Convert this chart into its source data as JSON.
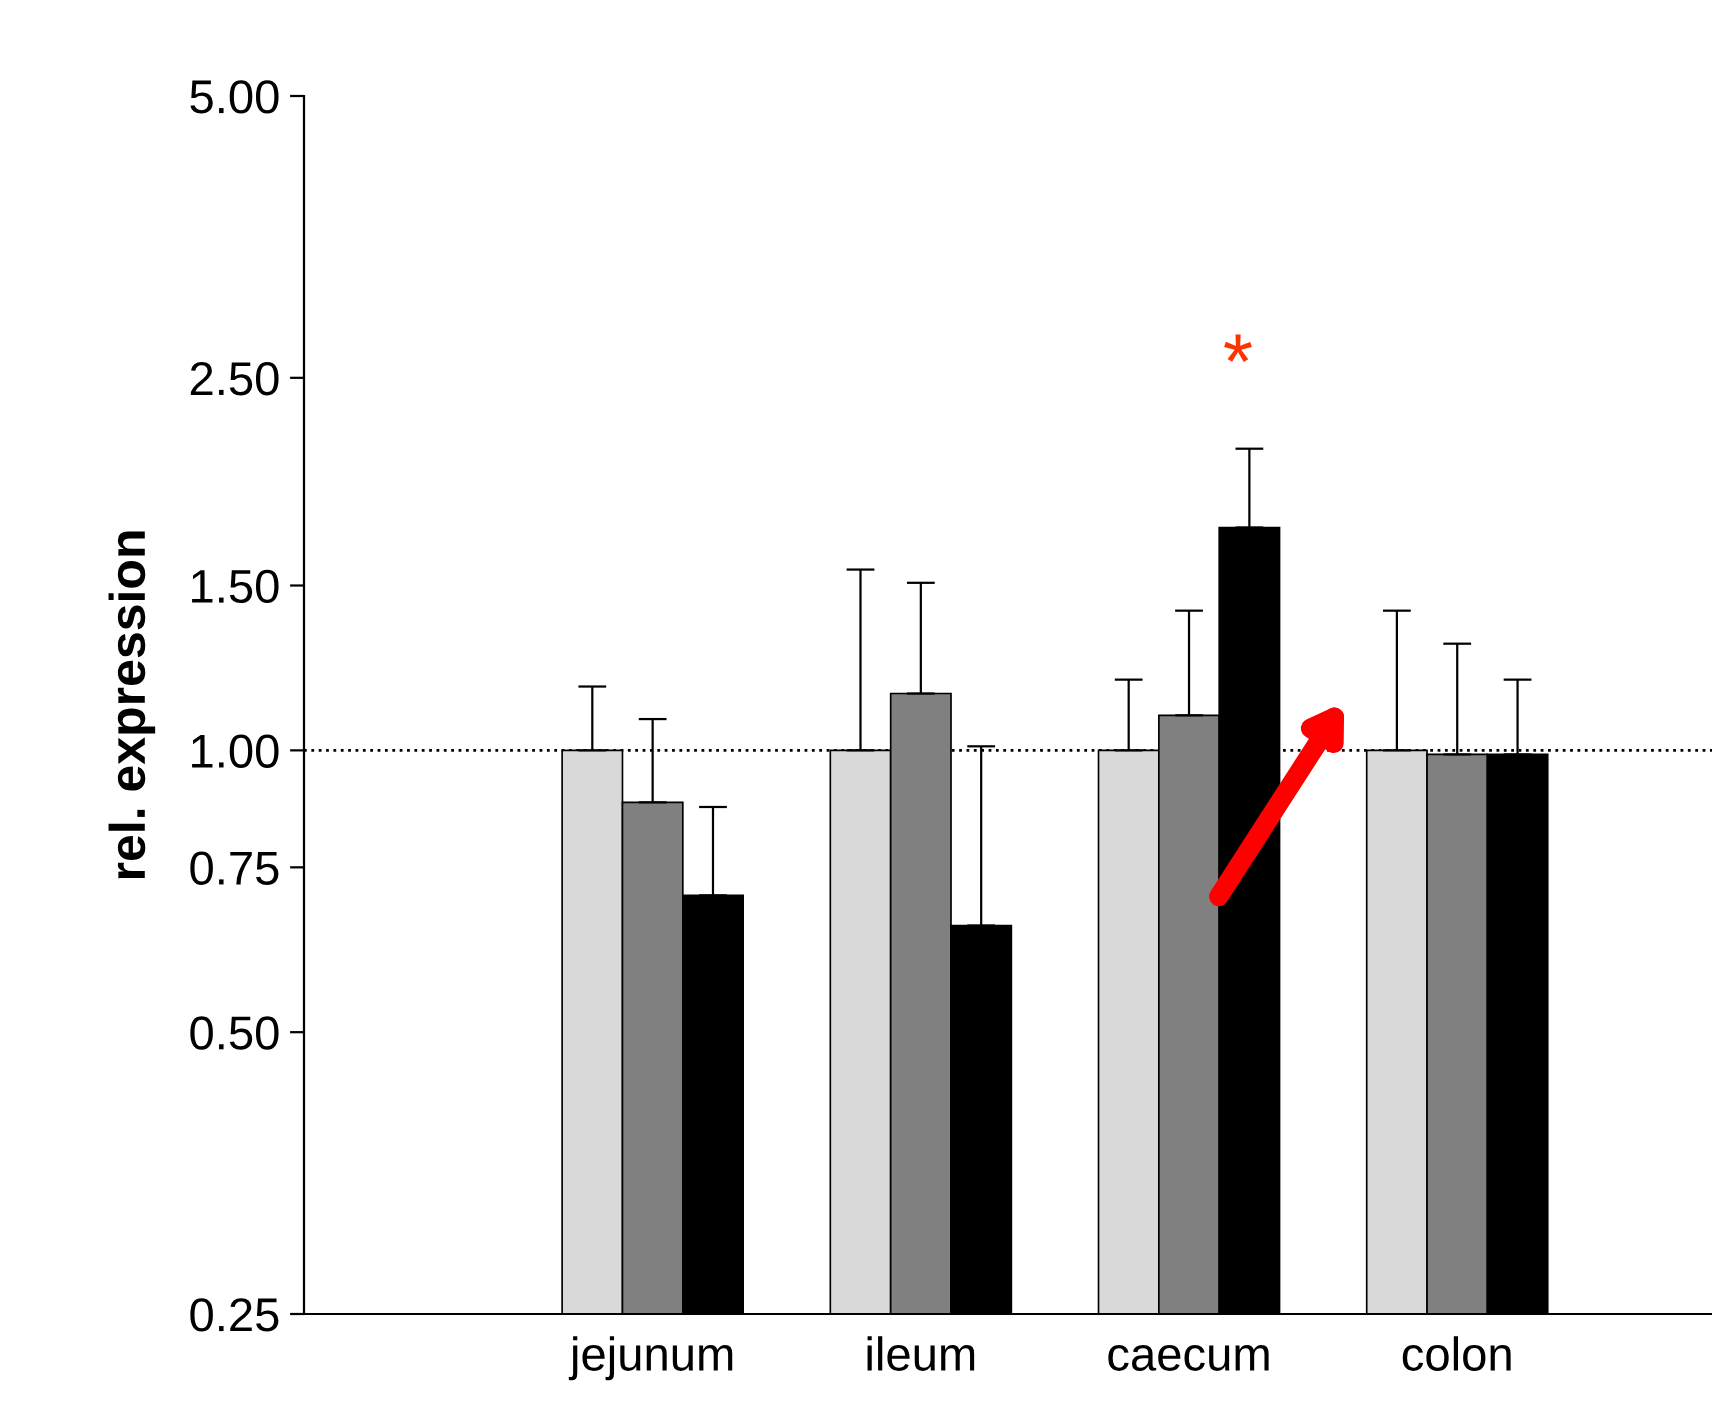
{
  "chart_data": {
    "type": "bar",
    "ylabel": "rel. expression",
    "categories": [
      "jejunum",
      "ileum",
      "caecum",
      "colon"
    ],
    "series": [
      {
        "color": "#d9d9d9",
        "values": [
          1.0,
          1.0,
          1.0,
          1.0
        ],
        "errors": [
          [
            1.0,
            1.17
          ],
          [
            1.0,
            1.56
          ],
          [
            1.0,
            1.19
          ],
          [
            1.0,
            1.41
          ]
        ]
      },
      {
        "color": "#808080",
        "values": [
          0.88,
          1.15,
          1.09,
          0.99
        ],
        "errors": [
          [
            0.88,
            1.08
          ],
          [
            1.15,
            1.51
          ],
          [
            1.09,
            1.41
          ],
          [
            0.99,
            1.3
          ]
        ]
      },
      {
        "color": "#000000",
        "values": [
          0.7,
          0.65,
          1.73,
          0.99
        ],
        "errors": [
          [
            0.7,
            0.87
          ],
          [
            0.65,
            1.01
          ],
          [
            1.73,
            2.1
          ],
          [
            0.99,
            1.19
          ]
        ]
      }
    ],
    "log": "y",
    "ylim": [
      0.25,
      5
    ],
    "yticks": [
      {
        "value": 0.25,
        "label": "0.25"
      },
      {
        "value": 0.5,
        "label": "0.50"
      },
      {
        "value": 0.75,
        "label": "0.75"
      },
      {
        "value": 1,
        "label": "1.00"
      },
      {
        "value": 1.5,
        "label": "1.50"
      },
      {
        "value": 2.5,
        "label": "2.50"
      },
      {
        "value": 5,
        "label": "5.00"
      }
    ],
    "ref_lines": [
      {
        "axis": "y",
        "value": 1,
        "color": "#000000",
        "line_style": "dotted"
      }
    ],
    "annotations": [
      "*"
    ],
    "grid": false,
    "legend": false
  }
}
